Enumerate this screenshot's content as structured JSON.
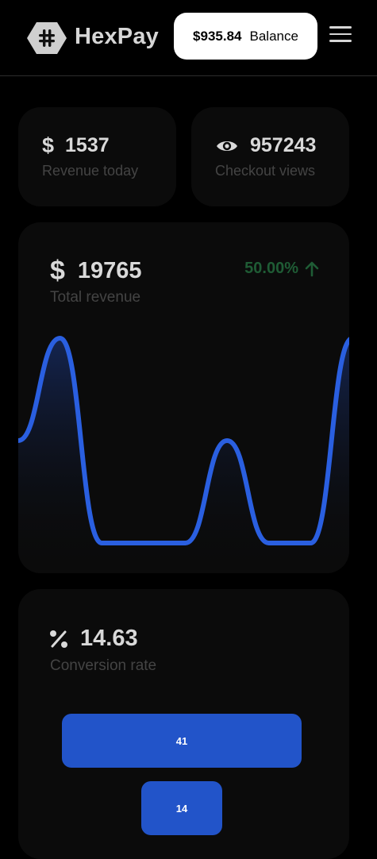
{
  "header": {
    "brand": "HexPay",
    "balance_amount": "$935.84",
    "balance_label": "Balance"
  },
  "stats": {
    "revenue_today": {
      "value": "1537",
      "label": "Revenue today",
      "icon": "dollar-icon"
    },
    "checkout_views": {
      "value": "957243",
      "label": "Checkout views",
      "icon": "eye-icon"
    }
  },
  "revenue": {
    "value": "19765",
    "label": "Total revenue",
    "change": "50.00%",
    "change_color": "#1f5c35"
  },
  "revenue_chart": {
    "type": "area",
    "values": [
      0.5,
      1.0,
      0.0,
      0.0,
      0.0,
      0.5,
      0.0,
      0.0,
      1.0
    ],
    "line_color": "#2a5fe0"
  },
  "conversion": {
    "value": "14.63",
    "label": "Conversion rate",
    "icon": "percent-icon",
    "funnel": [
      {
        "value": 41,
        "label": "41"
      },
      {
        "value": 14,
        "label": "14"
      }
    ]
  },
  "colors": {
    "accent": "#2254c9",
    "card": "#0b0b0b",
    "background": "#000000"
  }
}
